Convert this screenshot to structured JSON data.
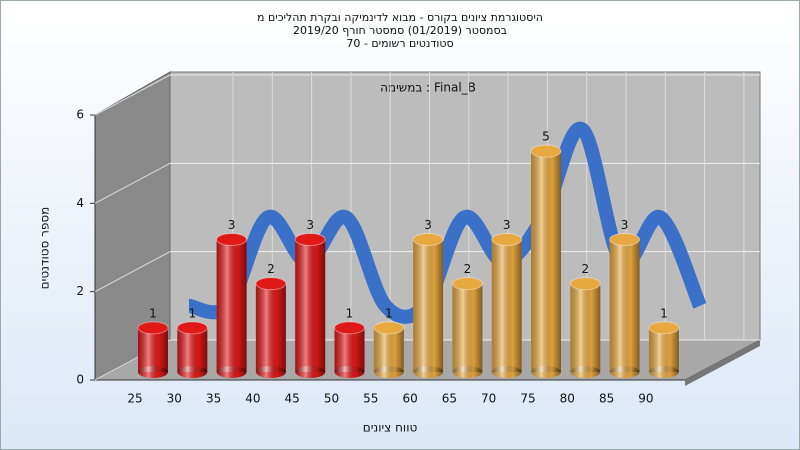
{
  "chart_data": {
    "type": "bar",
    "title": [
      "היסטוגרמת ציונים בקורס - מבוא לדינמיקה ובקרת תהליכים מ",
      "בסמסטר  (01/2019)  סמסטר חורף 2019/20",
      "סטודנטים רשומים - 70"
    ],
    "annotation": "במשימה : Final_B",
    "x_label": "טווח ציונים",
    "y_label": "מספר סטודנטים",
    "categories": [
      "25",
      "30",
      "35",
      "40",
      "45",
      "50",
      "55",
      "60",
      "65",
      "70",
      "75",
      "80",
      "85",
      "90"
    ],
    "values": [
      1,
      1,
      3,
      2,
      3,
      1,
      1,
      3,
      2,
      3,
      5,
      2,
      3,
      1
    ],
    "colors": [
      "#e01818",
      "#e01818",
      "#e01818",
      "#e01818",
      "#e01818",
      "#e01818",
      "#e8a840",
      "#e8a840",
      "#e8a840",
      "#e8a840",
      "#e8a840",
      "#e8a840",
      "#e8a840",
      "#e8a840"
    ],
    "curve_color": "#3a70c8",
    "ylim": [
      0,
      6
    ],
    "yticks": [
      0,
      2,
      4,
      6
    ],
    "grid": true
  }
}
